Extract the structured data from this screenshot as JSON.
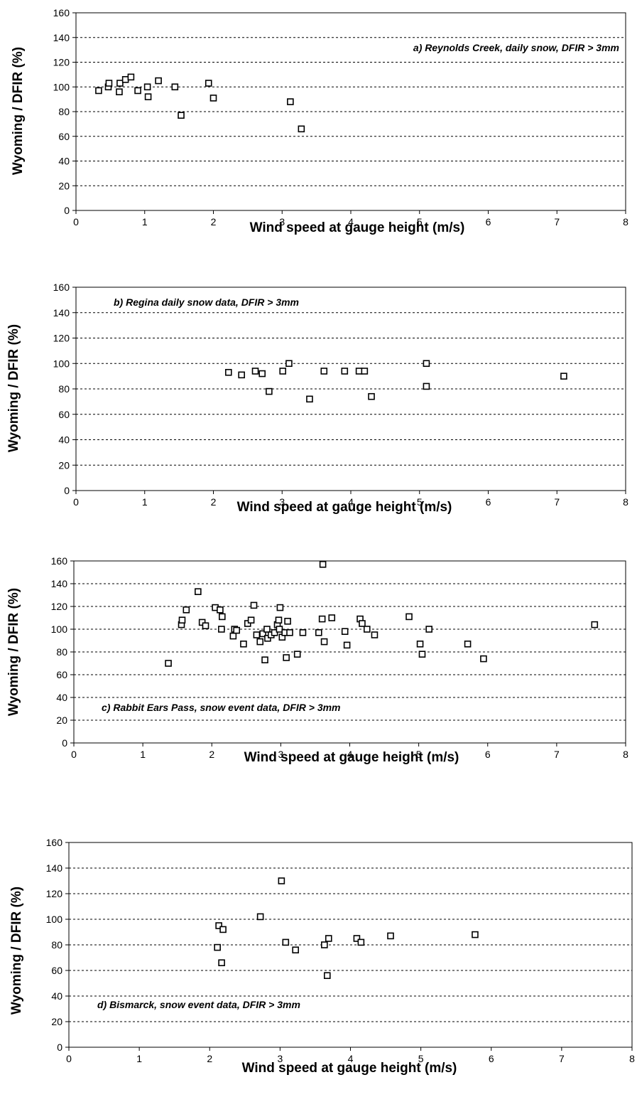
{
  "chart_data": [
    {
      "type": "scatter",
      "title": "",
      "annotation": "a) Reynolds Creek, daily snow, DFIR > 3mm",
      "xlabel": "Wind speed at gauge height (m/s)",
      "ylabel": "Wyoming / DFIR (%)",
      "xlim": [
        0,
        8
      ],
      "ylim": [
        0,
        160
      ],
      "xticks": [
        "0",
        "1",
        "2",
        "3",
        "4",
        "5",
        "6",
        "7",
        "8"
      ],
      "yticks": [
        "0",
        "20",
        "40",
        "60",
        "80",
        "100",
        "120",
        "140",
        "160"
      ],
      "grid": "horizontal-dashed",
      "points": [
        {
          "x": 0.33,
          "y": 97
        },
        {
          "x": 0.47,
          "y": 100
        },
        {
          "x": 0.48,
          "y": 103
        },
        {
          "x": 0.63,
          "y": 96
        },
        {
          "x": 0.64,
          "y": 103
        },
        {
          "x": 0.72,
          "y": 106
        },
        {
          "x": 0.8,
          "y": 108
        },
        {
          "x": 0.9,
          "y": 97
        },
        {
          "x": 1.04,
          "y": 100
        },
        {
          "x": 1.05,
          "y": 92
        },
        {
          "x": 1.2,
          "y": 105
        },
        {
          "x": 1.44,
          "y": 100
        },
        {
          "x": 1.53,
          "y": 77
        },
        {
          "x": 1.93,
          "y": 103
        },
        {
          "x": 2.0,
          "y": 91
        },
        {
          "x": 3.12,
          "y": 88
        },
        {
          "x": 3.28,
          "y": 66
        }
      ]
    },
    {
      "type": "scatter",
      "title": "",
      "annotation": "b) Regina daily snow data, DFIR > 3mm",
      "xlabel": "Wind speed at gauge height  (m/s)",
      "ylabel": "Wyoming / DFIR (%)",
      "xlim": [
        0,
        8
      ],
      "ylim": [
        0,
        160
      ],
      "xticks": [
        "0",
        "1",
        "2",
        "3",
        "4",
        "5",
        "6",
        "7",
        "8"
      ],
      "yticks": [
        "0",
        "20",
        "40",
        "60",
        "80",
        "100",
        "120",
        "140",
        "160"
      ],
      "grid": "horizontal-dashed",
      "points": [
        {
          "x": 2.22,
          "y": 93
        },
        {
          "x": 2.41,
          "y": 91
        },
        {
          "x": 2.61,
          "y": 94
        },
        {
          "x": 2.71,
          "y": 92
        },
        {
          "x": 2.81,
          "y": 78
        },
        {
          "x": 3.01,
          "y": 94
        },
        {
          "x": 3.1,
          "y": 100
        },
        {
          "x": 3.4,
          "y": 72
        },
        {
          "x": 3.61,
          "y": 94
        },
        {
          "x": 3.91,
          "y": 94
        },
        {
          "x": 4.12,
          "y": 94
        },
        {
          "x": 4.2,
          "y": 94
        },
        {
          "x": 4.3,
          "y": 74
        },
        {
          "x": 5.1,
          "y": 100
        },
        {
          "x": 5.1,
          "y": 82
        },
        {
          "x": 7.1,
          "y": 90
        }
      ]
    },
    {
      "type": "scatter",
      "title": "",
      "annotation": "c) Rabbit Ears Pass, snow event data, DFIR > 3mm",
      "xlabel": "Wind speed at gauge height (m/s)",
      "ylabel": "Wyoming / DFIR (%)",
      "xlim": [
        0,
        8
      ],
      "ylim": [
        0,
        160
      ],
      "xticks": [
        "0",
        "1",
        "2",
        "3",
        "4",
        "5",
        "6",
        "7",
        "8"
      ],
      "yticks": [
        "0",
        "20",
        "40",
        "60",
        "80",
        "100",
        "120",
        "140",
        "160"
      ],
      "grid": "horizontal-dashed",
      "points": [
        {
          "x": 1.37,
          "y": 70
        },
        {
          "x": 1.56,
          "y": 104
        },
        {
          "x": 1.57,
          "y": 108
        },
        {
          "x": 1.63,
          "y": 117
        },
        {
          "x": 1.8,
          "y": 133
        },
        {
          "x": 1.86,
          "y": 106
        },
        {
          "x": 1.91,
          "y": 103
        },
        {
          "x": 2.05,
          "y": 119
        },
        {
          "x": 2.12,
          "y": 117
        },
        {
          "x": 2.14,
          "y": 100
        },
        {
          "x": 2.15,
          "y": 111
        },
        {
          "x": 2.31,
          "y": 94
        },
        {
          "x": 2.33,
          "y": 100
        },
        {
          "x": 2.36,
          "y": 99
        },
        {
          "x": 2.46,
          "y": 87
        },
        {
          "x": 2.52,
          "y": 105
        },
        {
          "x": 2.57,
          "y": 108
        },
        {
          "x": 2.61,
          "y": 121
        },
        {
          "x": 2.65,
          "y": 95
        },
        {
          "x": 2.7,
          "y": 89
        },
        {
          "x": 2.74,
          "y": 96
        },
        {
          "x": 2.77,
          "y": 73
        },
        {
          "x": 2.8,
          "y": 100
        },
        {
          "x": 2.81,
          "y": 92
        },
        {
          "x": 2.86,
          "y": 95
        },
        {
          "x": 2.91,
          "y": 97
        },
        {
          "x": 2.95,
          "y": 104
        },
        {
          "x": 2.97,
          "y": 108
        },
        {
          "x": 2.98,
          "y": 100
        },
        {
          "x": 2.99,
          "y": 119
        },
        {
          "x": 3.02,
          "y": 93
        },
        {
          "x": 3.06,
          "y": 97
        },
        {
          "x": 3.08,
          "y": 75
        },
        {
          "x": 3.1,
          "y": 107
        },
        {
          "x": 3.13,
          "y": 97
        },
        {
          "x": 3.24,
          "y": 78
        },
        {
          "x": 3.32,
          "y": 97
        },
        {
          "x": 3.55,
          "y": 97
        },
        {
          "x": 3.6,
          "y": 109
        },
        {
          "x": 3.61,
          "y": 157
        },
        {
          "x": 3.63,
          "y": 89
        },
        {
          "x": 3.74,
          "y": 110
        },
        {
          "x": 3.93,
          "y": 98
        },
        {
          "x": 3.96,
          "y": 86
        },
        {
          "x": 4.15,
          "y": 109
        },
        {
          "x": 4.18,
          "y": 105
        },
        {
          "x": 4.25,
          "y": 100
        },
        {
          "x": 4.36,
          "y": 95
        },
        {
          "x": 4.86,
          "y": 111
        },
        {
          "x": 5.02,
          "y": 87
        },
        {
          "x": 5.05,
          "y": 78
        },
        {
          "x": 5.15,
          "y": 100
        },
        {
          "x": 5.71,
          "y": 87
        },
        {
          "x": 5.94,
          "y": 74
        },
        {
          "x": 7.55,
          "y": 104
        }
      ]
    },
    {
      "type": "scatter",
      "title": "",
      "annotation": "d) Bismarck, snow event data, DFIR > 3mm",
      "xlabel": "Wind speed at gauge height (m/s)",
      "ylabel": "Wyoming / DFIR  (%)",
      "xlim": [
        0,
        8
      ],
      "ylim": [
        0,
        160
      ],
      "xticks": [
        "0",
        "1",
        "2",
        "3",
        "4",
        "5",
        "6",
        "7",
        "8"
      ],
      "yticks": [
        "0",
        "20",
        "40",
        "60",
        "80",
        "100",
        "120",
        "140",
        "160"
      ],
      "grid": "horizontal-dashed",
      "points": [
        {
          "x": 2.11,
          "y": 78
        },
        {
          "x": 2.13,
          "y": 95
        },
        {
          "x": 2.17,
          "y": 66
        },
        {
          "x": 2.19,
          "y": 92
        },
        {
          "x": 2.72,
          "y": 102
        },
        {
          "x": 3.02,
          "y": 130
        },
        {
          "x": 3.08,
          "y": 82
        },
        {
          "x": 3.22,
          "y": 76
        },
        {
          "x": 3.63,
          "y": 80
        },
        {
          "x": 3.67,
          "y": 56
        },
        {
          "x": 3.69,
          "y": 85
        },
        {
          "x": 4.09,
          "y": 85
        },
        {
          "x": 4.15,
          "y": 82
        },
        {
          "x": 4.57,
          "y": 87
        },
        {
          "x": 5.77,
          "y": 88
        }
      ]
    }
  ]
}
